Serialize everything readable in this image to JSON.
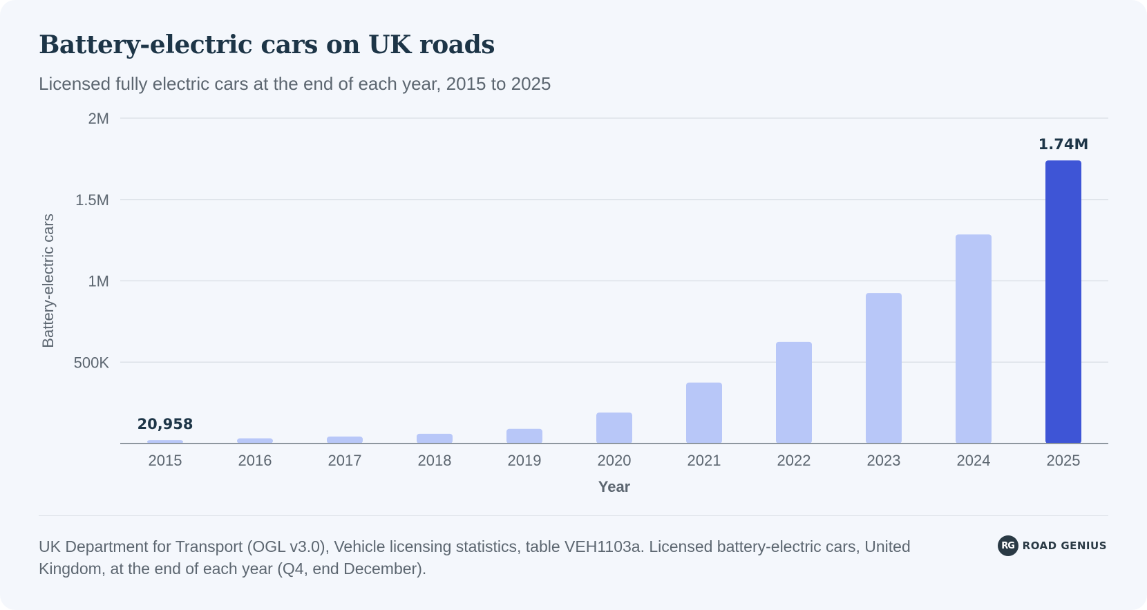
{
  "header": {
    "title": "Battery-electric cars on UK roads",
    "subtitle": "Licensed fully electric cars at the end of each year, 2015 to 2025"
  },
  "chart_data": {
    "type": "bar",
    "title": "Battery-electric cars on UK roads",
    "subtitle": "Licensed fully electric cars at the end of each year, 2015 to 2025",
    "xlabel": "Year",
    "ylabel": "Battery-electric cars",
    "categories": [
      "2015",
      "2016",
      "2017",
      "2018",
      "2019",
      "2020",
      "2021",
      "2022",
      "2023",
      "2024",
      "2025"
    ],
    "values": [
      20958,
      32000,
      43000,
      60000,
      90000,
      190000,
      375000,
      625000,
      925000,
      1285000,
      1740000
    ],
    "ylim": [
      0,
      2000000
    ],
    "yticks": [
      0,
      500000,
      1000000,
      1500000,
      2000000
    ],
    "ytick_labels": [
      "",
      "500K",
      "1M",
      "1.5M",
      "2M"
    ],
    "data_labels": [
      {
        "category": "2015",
        "text": "20,958"
      },
      {
        "category": "2025",
        "text": "1.74M"
      }
    ],
    "highlight_category": "2025",
    "grid": true,
    "colors": {
      "bar": "#b8c7f8",
      "highlight": "#3e55d6",
      "grid": "#dde2e8",
      "axis": "#8e979f",
      "tick_text": "#5c6670",
      "label_text": "#1d3547"
    }
  },
  "footer": {
    "source": "UK Department for Transport (OGL v3.0), Vehicle licensing statistics, table VEH1103a. Licensed battery-electric cars, United Kingdom, at the end of each year (Q4, end December).",
    "brand_badge": "RG",
    "brand_name": "ROAD GENIUS"
  }
}
